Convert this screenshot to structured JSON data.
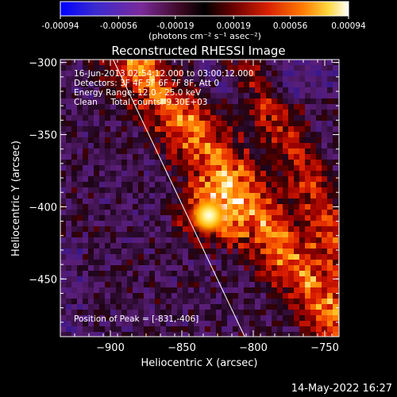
{
  "colorbar": {
    "ticks": [
      "-0.00094",
      "-0.00056",
      "-0.00019",
      "0.00019",
      "0.00056",
      "0.00094"
    ],
    "tick_values": [
      -0.00094,
      -0.00056,
      -0.00019,
      0.00019,
      0.00056,
      0.00094
    ],
    "unit_label": "(photons cm⁻² s⁻¹ asec⁻²)",
    "range": [
      -0.00094,
      0.00094
    ]
  },
  "chart_data": {
    "type": "heatmap",
    "title": "Reconstructed RHESSI Image",
    "xlabel": "Heliocentric X (arcsec)",
    "ylabel": "Heliocentric Y (arcsec)",
    "xlim": [
      -935,
      -740
    ],
    "ylim": [
      -490,
      -298
    ],
    "x_ticks": [
      -900,
      -850,
      -800,
      -750
    ],
    "y_ticks": [
      -300,
      -350,
      -400,
      -450
    ],
    "x_tick_labels": [
      "−900",
      "−850",
      "−800",
      "−750"
    ],
    "y_tick_labels": [
      "−300",
      "−350",
      "−400",
      "−450"
    ],
    "peak": [
      -831,
      -406
    ],
    "limb_line": [
      [
        -898,
        -298
      ],
      [
        -806,
        -490
      ]
    ]
  },
  "info": {
    "line1": "16-Jun-2013 02:54:12.000 to 03:00:12.000",
    "line2": "Detectors: 3F 4F 5F 6F 7F 8F, Att 0",
    "line3": "Energy Range: 12.0 - 25.0 keV",
    "line4": "Clean     Total counts: 9.30E+03",
    "peak_label": "Position of Peak = [-831,-406]"
  },
  "footer": {
    "timestamp": "14-May-2022 16:27"
  }
}
